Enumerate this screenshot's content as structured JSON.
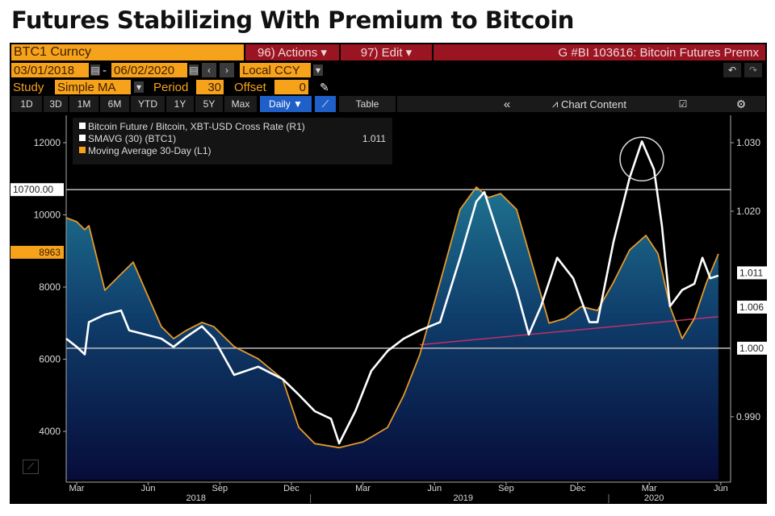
{
  "title": "Futures Stabilizing With Premium to Bitcoin",
  "toolbar": {
    "ticker": "BTC1 Curncy",
    "actions": "96) Actions ▾",
    "edit": "97) Edit ▾",
    "chart_title": "G #BI 103616: Bitcoin Futures Premx",
    "start_date": "03/01/2018",
    "date_sep": "-",
    "end_date": "06/02/2020",
    "currency": "Local CCY",
    "study_label": "Study",
    "study": "Simple MA",
    "period_label": "Period",
    "period": "30",
    "offset_label": "Offset",
    "offset": "0",
    "ranges": [
      "1D",
      "3D",
      "1M",
      "6M",
      "YTD",
      "1Y",
      "5Y",
      "Max"
    ],
    "frequency": "Daily ▼",
    "table": "Table",
    "collapse": "«",
    "chart_content": "Chart Content"
  },
  "chart_data": {
    "type": "line",
    "x_unit": "months since Jan 2018",
    "xlim": [
      1.56,
      29.41
    ],
    "left_ylim": [
      2660,
      12760
    ],
    "right_ylim": [
      0.9808,
      1.034
    ],
    "left_ticks": [
      12000,
      10000,
      8000,
      6000,
      4000
    ],
    "right_ticks": [
      "1.030",
      "1.020",
      "0.990"
    ],
    "x_ticks": [
      {
        "m": 2,
        "label": "Mar"
      },
      {
        "m": 5,
        "label": "Jun"
      },
      {
        "m": 8,
        "label": "Sep"
      },
      {
        "m": 11,
        "label": "Dec"
      },
      {
        "m": 14,
        "label": "Mar"
      },
      {
        "m": 17,
        "label": "Jun"
      },
      {
        "m": 20,
        "label": "Sep"
      },
      {
        "m": 23,
        "label": "Dec"
      },
      {
        "m": 26,
        "label": "Mar"
      },
      {
        "m": 29,
        "label": "Jun"
      }
    ],
    "years": [
      {
        "m": 7,
        "label": "2018"
      },
      {
        "m": 18.2,
        "label": "2019"
      },
      {
        "m": 26.2,
        "label": "2020"
      }
    ],
    "year_breaks": [
      11.8,
      24.3
    ],
    "legend": [
      {
        "label": "Bitcoin Future / Bitcoin, XBT-USD Cross Rate (R1)",
        "color": "#ffffff",
        "value": ""
      },
      {
        "label": "SMAVG (30) (BTC1)",
        "color": "#ffffff",
        "value": "1.011"
      },
      {
        "label": "Moving Average 30-Day (L1)",
        "color": "#f7a21b",
        "value": ""
      }
    ],
    "series": [
      {
        "name": "Moving Average 30-Day (L1)",
        "axis": "left",
        "color": "#e39a2a",
        "points": [
          [
            1.56,
            9920
          ],
          [
            2.0,
            9810
          ],
          [
            2.34,
            9590
          ],
          [
            2.51,
            9700
          ],
          [
            3.18,
            7910
          ],
          [
            3.86,
            8360
          ],
          [
            4.37,
            8690
          ],
          [
            4.88,
            7910
          ],
          [
            5.55,
            6900
          ],
          [
            6.06,
            6570
          ],
          [
            6.57,
            6790
          ],
          [
            7.25,
            7020
          ],
          [
            7.75,
            6900
          ],
          [
            8.6,
            6350
          ],
          [
            9.61,
            6010
          ],
          [
            10.63,
            5450
          ],
          [
            11.31,
            4110
          ],
          [
            11.98,
            3660
          ],
          [
            13.0,
            3550
          ],
          [
            14.01,
            3710
          ],
          [
            15.03,
            4110
          ],
          [
            15.71,
            5000
          ],
          [
            16.38,
            6120
          ],
          [
            17.23,
            8130
          ],
          [
            18.07,
            10150
          ],
          [
            18.75,
            10770
          ],
          [
            19.26,
            10480
          ],
          [
            19.77,
            10590
          ],
          [
            20.44,
            10150
          ],
          [
            21.12,
            8580
          ],
          [
            21.8,
            7000
          ],
          [
            22.47,
            7130
          ],
          [
            23.15,
            7460
          ],
          [
            23.83,
            7350
          ],
          [
            24.5,
            8130
          ],
          [
            25.18,
            9030
          ],
          [
            25.86,
            9430
          ],
          [
            26.37,
            8920
          ],
          [
            26.87,
            7460
          ],
          [
            27.38,
            6570
          ],
          [
            27.89,
            7130
          ],
          [
            28.4,
            8130
          ],
          [
            28.9,
            8920
          ]
        ]
      },
      {
        "name": "Bitcoin Future / Bitcoin, XBT-USD Cross Rate (R1)",
        "axis": "right",
        "color": "#ffffff",
        "points": [
          [
            1.56,
            1.0014
          ],
          [
            2.0,
            1.0002
          ],
          [
            2.34,
            0.9991
          ],
          [
            2.51,
            1.0038
          ],
          [
            3.18,
            1.0049
          ],
          [
            3.86,
            1.0055
          ],
          [
            4.2,
            1.0026
          ],
          [
            4.88,
            1.002
          ],
          [
            5.55,
            1.0014
          ],
          [
            6.06,
            1.0002
          ],
          [
            6.57,
            1.0016
          ],
          [
            7.25,
            1.0032
          ],
          [
            7.75,
            1.0014
          ],
          [
            8.6,
            0.9961
          ],
          [
            9.61,
            0.9973
          ],
          [
            10.63,
            0.9955
          ],
          [
            11.31,
            0.9932
          ],
          [
            11.98,
            0.9908
          ],
          [
            12.66,
            0.9897
          ],
          [
            13.0,
            0.9861
          ],
          [
            13.68,
            0.9908
          ],
          [
            14.35,
            0.9967
          ],
          [
            15.03,
            0.9996
          ],
          [
            15.71,
            1.0014
          ],
          [
            16.38,
            1.0026
          ],
          [
            17.23,
            1.0038
          ],
          [
            18.07,
            1.0132
          ],
          [
            18.75,
            1.0214
          ],
          [
            19.09,
            1.0228
          ],
          [
            19.77,
            1.0155
          ],
          [
            20.44,
            1.0085
          ],
          [
            20.95,
            1.002
          ],
          [
            21.46,
            1.0061
          ],
          [
            22.14,
            1.0132
          ],
          [
            22.81,
            1.0102
          ],
          [
            23.49,
            1.0038
          ],
          [
            23.83,
            1.0038
          ],
          [
            24.5,
            1.0155
          ],
          [
            25.18,
            1.0249
          ],
          [
            25.69,
            1.0302
          ],
          [
            26.2,
            1.0261
          ],
          [
            26.53,
            1.0179
          ],
          [
            26.87,
            1.0061
          ],
          [
            27.38,
            1.0085
          ],
          [
            27.89,
            1.0094
          ],
          [
            28.23,
            1.0132
          ],
          [
            28.56,
            1.0102
          ],
          [
            28.9,
            1.0106
          ]
        ]
      }
    ],
    "trendline": {
      "axis": "right",
      "color": "#c0306a",
      "from": [
        16.38,
        1.0005
      ],
      "to": [
        28.9,
        1.0046
      ]
    },
    "hlines": [
      {
        "axis": "left",
        "value": 10700,
        "label": "10700.00"
      },
      {
        "axis": "right",
        "value": 1.0,
        "label": "1.000"
      }
    ],
    "value_labels": [
      {
        "axis": "left",
        "value": 8963,
        "label": "8963",
        "color": "#f7a21b"
      },
      {
        "axis": "right",
        "value": 1.011,
        "label": "1.011",
        "color": "#ffffff"
      },
      {
        "axis": "right",
        "value": 1.006,
        "label": "1.006",
        "color": "#ffffff"
      }
    ],
    "annotation": {
      "type": "circle",
      "at": [
        25.69,
        1.0302
      ]
    }
  }
}
